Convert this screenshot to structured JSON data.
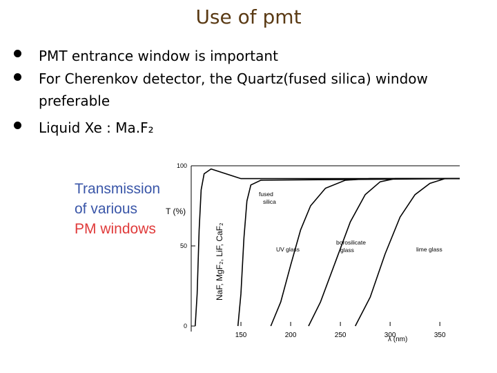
{
  "header": {
    "title": "Use of pmt"
  },
  "bullets": [
    "PMT entrance window is important",
    "For Cherenkov detector, the Quartz(fused silica) window preferable",
    "Liquid Xe : Ma.F₂"
  ],
  "caption": [
    "Transmission",
    "of various",
    "PM windows"
  ],
  "chart_data": {
    "type": "line",
    "y_label": "T (%)",
    "x_label": "λ (nm)",
    "xlim": [
      100,
      370
    ],
    "ylim": [
      0,
      100
    ],
    "xticks": [
      150,
      200,
      250,
      300,
      350
    ],
    "yticks": [
      0,
      50,
      100
    ],
    "series": [
      {
        "name": "NaF, MgF₂, LiF, CaF₂",
        "color": "#000000",
        "x": [
          104,
          106,
          108,
          110,
          113,
          120,
          150,
          370
        ],
        "values": [
          0,
          20,
          60,
          85,
          95,
          98,
          92,
          92
        ]
      },
      {
        "name": "fused silica",
        "color": "#000000",
        "x": [
          147,
          150,
          153,
          156,
          160,
          170,
          370
        ],
        "values": [
          0,
          20,
          55,
          78,
          88,
          91,
          92
        ]
      },
      {
        "name": "UV glass",
        "color": "#000000",
        "x": [
          180,
          190,
          200,
          210,
          220,
          235,
          255,
          280,
          370
        ],
        "values": [
          0,
          15,
          38,
          60,
          75,
          86,
          91,
          92,
          92
        ]
      },
      {
        "name": "borosilicate glass",
        "color": "#000000",
        "x": [
          218,
          230,
          245,
          260,
          275,
          290,
          305,
          370
        ],
        "values": [
          0,
          15,
          40,
          65,
          82,
          90,
          92,
          92
        ]
      },
      {
        "name": "lime glass",
        "color": "#000000",
        "x": [
          265,
          280,
          295,
          310,
          325,
          340,
          355,
          370
        ],
        "values": [
          0,
          18,
          45,
          68,
          82,
          89,
          92,
          92
        ]
      }
    ]
  }
}
